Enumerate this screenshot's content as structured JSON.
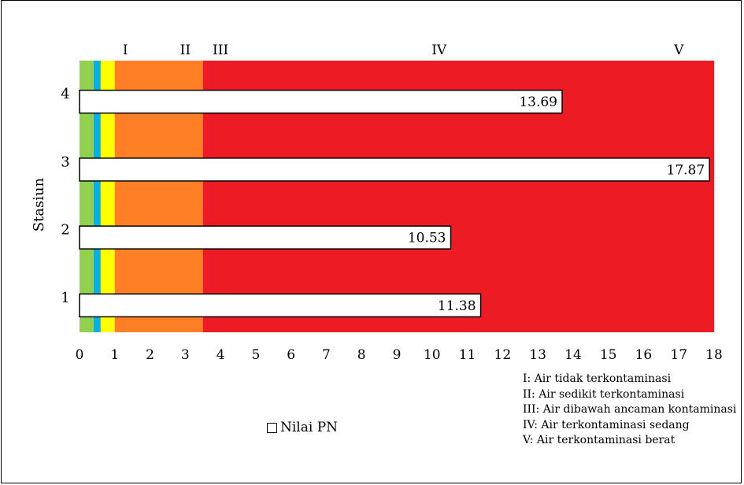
{
  "chart_data": {
    "type": "bar",
    "orientation": "horizontal",
    "ylabel": "Stasiun",
    "categories": [
      "1",
      "2",
      "3",
      "4"
    ],
    "series": [
      {
        "name": "Nilai PN",
        "values": [
          11.38,
          10.53,
          17.87,
          13.69
        ]
      }
    ],
    "data_labels": [
      "11.38",
      "10.53",
      "17.87",
      "13.69"
    ],
    "xlim": [
      0,
      18
    ],
    "x_ticks": [
      "0",
      "1",
      "2",
      "3",
      "4",
      "5",
      "6",
      "7",
      "8",
      "9",
      "10",
      "11",
      "12",
      "13",
      "14",
      "15",
      "16",
      "17",
      "18"
    ],
    "grid": false,
    "legend_placement": "bottom-center",
    "background_zones": [
      {
        "from": 0,
        "to": 0.4,
        "color": "#92d050"
      },
      {
        "from": 0.4,
        "to": 0.6,
        "color": "#00b0f0"
      },
      {
        "from": 0.6,
        "to": 1.0,
        "color": "#ffff00"
      },
      {
        "from": 1.0,
        "to": 3.5,
        "color": "#ff7f27"
      },
      {
        "from": 3.5,
        "to": 18,
        "color": "#ed1c24"
      }
    ],
    "zone_labels": [
      {
        "label": "I",
        "x": 1.3
      },
      {
        "label": "II",
        "x": 3.0
      },
      {
        "label": "III",
        "x": 4.0
      },
      {
        "label": "IV",
        "x": 10.2
      },
      {
        "label": "V",
        "x": 17.0
      }
    ],
    "zone_notes": [
      "I: Air tidak terkontaminasi",
      "II: Air sedikit terkontaminasi",
      "III: Air dibawah ancaman kontaminasi",
      "IV: Air terkontaminasi sedang",
      "V: Air terkontaminasi berat"
    ]
  },
  "legend": {
    "label": "Nilai PN"
  }
}
